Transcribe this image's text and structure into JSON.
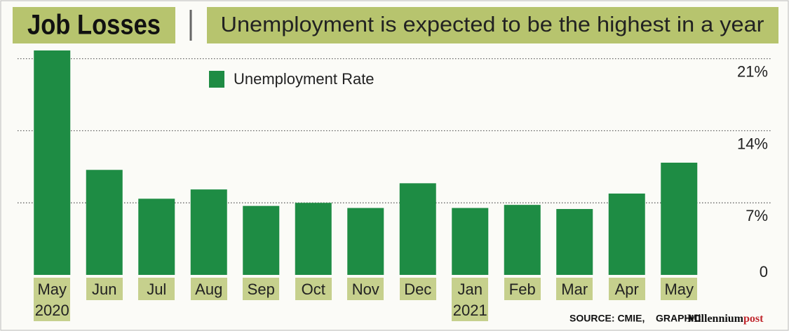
{
  "chart_data": {
    "type": "bar",
    "title": "Job Losses",
    "subtitle": "Unemployment is expected to be the highest in a year",
    "categories": [
      "May 2020",
      "Jun",
      "Jul",
      "Aug",
      "Sep",
      "Oct",
      "Nov",
      "Dec",
      "Jan 2021",
      "Feb",
      "Mar",
      "Apr",
      "May"
    ],
    "series": [
      {
        "name": "Unemployment Rate",
        "color": "#1e8c44",
        "values": [
          21.8,
          10.2,
          7.4,
          8.3,
          6.7,
          7.0,
          6.5,
          8.9,
          6.5,
          6.8,
          6.4,
          7.9,
          10.9
        ]
      }
    ],
    "ylim": [
      0,
      22
    ],
    "yticks": [
      0,
      {
        "value": 7,
        "label": "7%"
      },
      {
        "value": 14,
        "label": "14%"
      },
      {
        "value": 21,
        "label": "21%"
      }
    ],
    "grid": true,
    "source": "SOURCE: CMIE,",
    "credit": "GRAPHIC:",
    "brand": {
      "main": "Millennium",
      "accent": "post"
    }
  }
}
